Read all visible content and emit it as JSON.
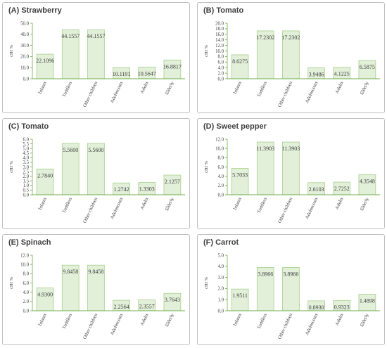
{
  "colors": {
    "bar_fill": "#e2efd9",
    "bar_stroke": "#a9d18e",
    "axis_line": "#70ad47",
    "text": "#404040"
  },
  "chart_data": [
    {
      "type": "bar",
      "title": "(A) Strawberry",
      "ylabel": "cHI %",
      "categories": [
        "Infants",
        "Toddlers",
        "Other children",
        "Adolescents",
        "Adults",
        "Elderly"
      ],
      "values": [
        22.1096,
        44.1557,
        44.1557,
        10.1191,
        10.5647,
        16.8817
      ],
      "value_labels": [
        "22.1096",
        "44.1557",
        "44.1557",
        "10.1191",
        "10.5647",
        "16.8817"
      ],
      "ylim": [
        0,
        50
      ],
      "yticks": [
        "0.0",
        "10.0",
        "20.0",
        "30.0",
        "40.0",
        "50.0"
      ],
      "grid": false
    },
    {
      "type": "bar",
      "title": "(B) Tomato",
      "ylabel": "cHI %",
      "categories": [
        "Infants",
        "Toddlers",
        "Other children",
        "Adolescents",
        "Adults",
        "Elderly"
      ],
      "values": [
        8.6275,
        17.2302,
        17.2302,
        3.9486,
        4.1225,
        6.5875
      ],
      "value_labels": [
        "8.6275",
        "17.2302",
        "17.2302",
        "3.9486",
        "4.1225",
        "6.5875"
      ],
      "ylim": [
        0,
        20
      ],
      "yticks": [
        "0.0",
        "2.0",
        "4.0",
        "6.0",
        "8.0",
        "10.0",
        "12.0",
        "14.0",
        "16.0",
        "18.0",
        "20.0"
      ],
      "grid": false
    },
    {
      "type": "bar",
      "title": "(C) Tomato",
      "ylabel": "cHI %",
      "categories": [
        "Infants",
        "Toddlers",
        "Other children",
        "Adolescents",
        "Adults",
        "Elderly"
      ],
      "values": [
        2.784,
        5.56,
        5.56,
        1.2742,
        1.3303,
        2.1257
      ],
      "value_labels": [
        "2.7840",
        "5.5600",
        "5.5600",
        "1.2742",
        "1.3303",
        "2.1257"
      ],
      "ylim": [
        0,
        6
      ],
      "yticks": [
        "0.0",
        "0.5",
        "1.0",
        "1.5",
        "2.0",
        "2.5",
        "3.0",
        "3.5",
        "4.0",
        "4.5",
        "5.0",
        "5.5",
        "6.0"
      ],
      "grid": false
    },
    {
      "type": "bar",
      "title": "(D) Sweet pepper",
      "ylabel": "cHI %",
      "categories": [
        "Infants",
        "Toddlers",
        "Other children",
        "Adolescents",
        "Adults",
        "Elderly"
      ],
      "values": [
        5.7033,
        11.3903,
        11.3903,
        2.6103,
        2.7252,
        4.3548
      ],
      "value_labels": [
        "5.7033",
        "11.3903",
        "11.3903",
        "2.6103",
        "2.7252",
        "4.3548"
      ],
      "ylim": [
        0,
        12
      ],
      "yticks": [
        "0.0",
        "2.0",
        "4.0",
        "6.0",
        "8.0",
        "10.0",
        "12.0"
      ],
      "grid": false
    },
    {
      "type": "bar",
      "title": "(E) Spinach",
      "ylabel": "cHI %",
      "categories": [
        "Infants",
        "Toddlers",
        "Other children",
        "Adolescents",
        "Adults",
        "Elderly"
      ],
      "values": [
        4.93,
        9.8458,
        9.8458,
        2.2564,
        2.3557,
        3.7643
      ],
      "value_labels": [
        "4.9300",
        "9.8458",
        "9.8458",
        "2.2564",
        "2.3557",
        "3.7643"
      ],
      "ylim": [
        0,
        12
      ],
      "yticks": [
        "0.0",
        "2.0",
        "4.0",
        "6.0",
        "8.0",
        "10.0",
        "12.0"
      ],
      "grid": false
    },
    {
      "type": "bar",
      "title": "(F) Carrot",
      "ylabel": "cHI %",
      "categories": [
        "Infants",
        "Toddlers",
        "Other children",
        "Adolescents",
        "Adults",
        "Elderly"
      ],
      "values": [
        1.9511,
        3.8966,
        3.8966,
        0.893,
        0.9323,
        1.4898
      ],
      "value_labels": [
        "1.9511",
        "3.8966",
        "3.8966",
        "0.8930",
        "0.9323",
        "1.4898"
      ],
      "ylim": [
        0,
        5
      ],
      "yticks": [
        "0.0",
        "1.0",
        "2.0",
        "3.0",
        "4.0",
        "5.0"
      ],
      "grid": false
    }
  ]
}
